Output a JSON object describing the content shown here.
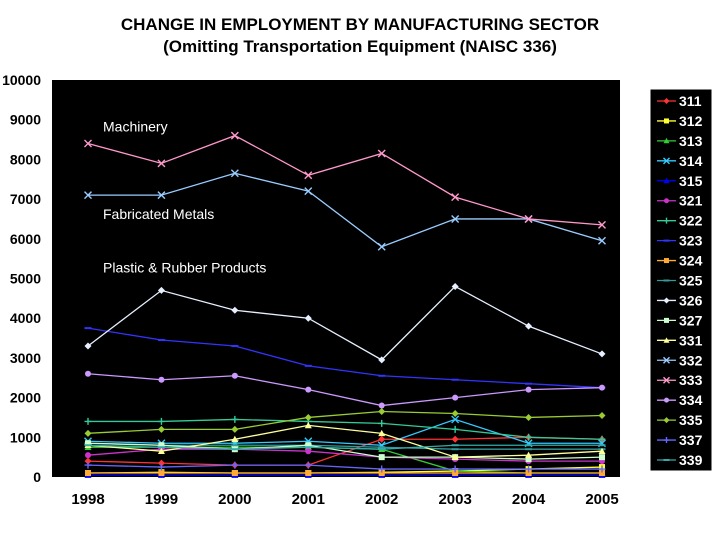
{
  "chart_data": {
    "type": "line",
    "title": "CHANGE IN EMPLOYMENT BY MANUFACTURING SECTOR",
    "subtitle": "(Omitting Transportation Equipment (NAISC 336)",
    "x": [
      "1998",
      "1999",
      "2000",
      "2001",
      "2002",
      "2003",
      "2004",
      "2005"
    ],
    "ylim": [
      0,
      10000
    ],
    "yticks": [
      0,
      1000,
      2000,
      3000,
      4000,
      5000,
      6000,
      7000,
      8000,
      9000,
      10000
    ],
    "grid": false,
    "legend_placement": "right",
    "background": "#000000",
    "annotations": [
      {
        "text": "Machinery",
        "x": "1998",
        "y": 8700
      },
      {
        "text": "Fabricated Metals",
        "x": "1998",
        "y": 6500
      },
      {
        "text": "Plastic & Rubber Products",
        "x": "1998",
        "y": 5150
      }
    ],
    "series": [
      {
        "name": "311",
        "color": "#ff3333",
        "marker": "diamond",
        "values": [
          400,
          350,
          300,
          300,
          950,
          950,
          1000,
          950
        ]
      },
      {
        "name": "312",
        "color": "#ffff33",
        "marker": "square",
        "values": [
          100,
          120,
          100,
          100,
          120,
          150,
          200,
          250
        ]
      },
      {
        "name": "313",
        "color": "#33cc33",
        "marker": "triangle",
        "values": [
          750,
          750,
          750,
          750,
          700,
          150,
          100,
          100
        ]
      },
      {
        "name": "314",
        "color": "#33ccff",
        "marker": "x",
        "values": [
          900,
          850,
          850,
          900,
          800,
          1450,
          850,
          850
        ]
      },
      {
        "name": "315",
        "color": "#0000ff",
        "marker": "triangle",
        "values": [
          50,
          50,
          50,
          50,
          50,
          50,
          50,
          50
        ]
      },
      {
        "name": "321",
        "color": "#cc33cc",
        "marker": "circle",
        "values": [
          550,
          700,
          700,
          650,
          500,
          450,
          400,
          400
        ]
      },
      {
        "name": "322",
        "color": "#33cc99",
        "marker": "plus",
        "values": [
          1400,
          1400,
          1450,
          1400,
          1350,
          1200,
          1000,
          950
        ]
      },
      {
        "name": "323",
        "color": "#3333ff",
        "marker": "dash",
        "values": [
          3750,
          3450,
          3300,
          2800,
          2550,
          2450,
          2350,
          2250
        ]
      },
      {
        "name": "324",
        "color": "#ffaa33",
        "marker": "square",
        "values": [
          100,
          100,
          100,
          100,
          100,
          100,
          100,
          100
        ]
      },
      {
        "name": "325",
        "color": "#339999",
        "marker": "dash",
        "values": [
          850,
          800,
          800,
          800,
          750,
          700,
          700,
          700
        ]
      },
      {
        "name": "326",
        "color": "#e6f0ff",
        "marker": "diamond",
        "values": [
          3300,
          4700,
          4200,
          4000,
          2950,
          4800,
          3800,
          3100
        ]
      },
      {
        "name": "327",
        "color": "#ccffcc",
        "marker": "square",
        "values": [
          850,
          800,
          700,
          800,
          500,
          500,
          450,
          500
        ]
      },
      {
        "name": "331",
        "color": "#ffff99",
        "marker": "triangle",
        "values": [
          800,
          650,
          950,
          1300,
          1100,
          500,
          550,
          650
        ]
      },
      {
        "name": "332",
        "color": "#99ccff",
        "marker": "x",
        "values": [
          7100,
          7100,
          7650,
          7200,
          5800,
          6500,
          6500,
          5950
        ]
      },
      {
        "name": "333",
        "color": "#ff99cc",
        "marker": "x",
        "values": [
          8400,
          7900,
          8600,
          7600,
          8150,
          7050,
          6500,
          6350
        ]
      },
      {
        "name": "334",
        "color": "#cc99ff",
        "marker": "circle",
        "values": [
          2600,
          2450,
          2550,
          2200,
          1800,
          2000,
          2200,
          2250
        ]
      },
      {
        "name": "335",
        "color": "#99cc33",
        "marker": "diamond",
        "values": [
          1100,
          1200,
          1200,
          1500,
          1650,
          1600,
          1500,
          1550
        ]
      },
      {
        "name": "337",
        "color": "#6666ff",
        "marker": "plus",
        "values": [
          300,
          250,
          300,
          300,
          200,
          200,
          200,
          200
        ]
      },
      {
        "name": "339",
        "color": "#33aaaa",
        "marker": "dash",
        "values": [
          800,
          750,
          700,
          750,
          700,
          800,
          800,
          800
        ]
      }
    ]
  }
}
